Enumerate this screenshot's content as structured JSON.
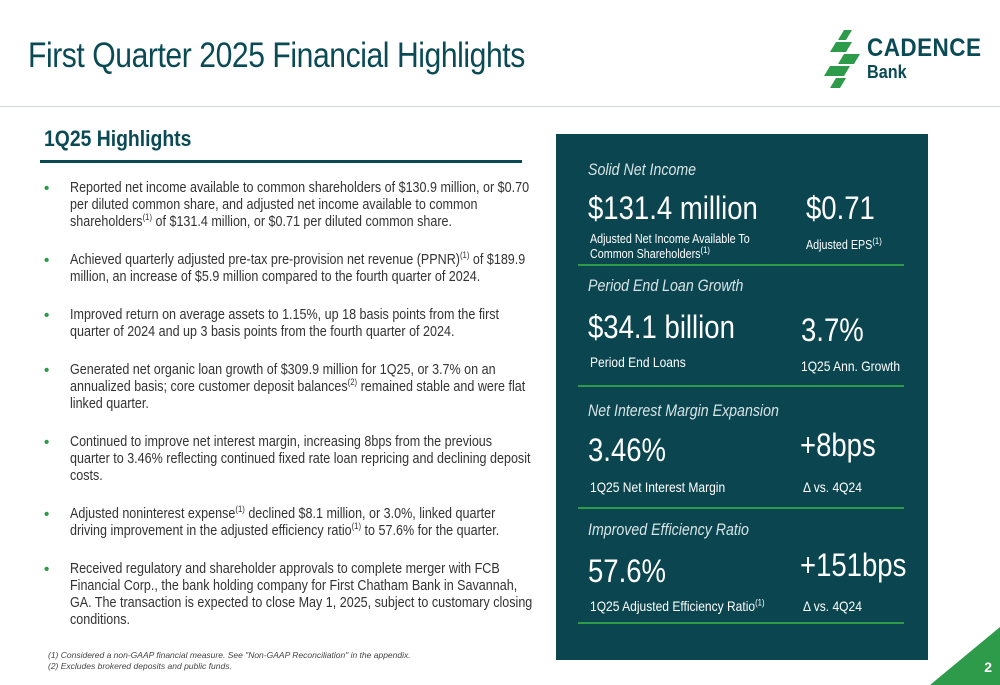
{
  "title": "First Quarter 2025 Financial Highlights",
  "logo": {
    "name": "CADENCE",
    "sub": "Bank"
  },
  "highlights": {
    "heading": "1Q25 Highlights",
    "bullets": [
      "Reported net income available to common shareholders of $130.9 million, or $0.70 per diluted common share, and adjusted net income available to common shareholders(1) of $131.4 million, or $0.71 per diluted common share.",
      "Achieved quarterly adjusted pre-tax pre-provision net revenue (PPNR)(1) of $189.9 million, an increase of $5.9 million compared to the fourth quarter of 2024.",
      "Improved return on average assets to 1.15%, up 18 basis points from the first quarter of 2024 and up 3 basis points from the fourth quarter of 2024.",
      "Generated net organic loan growth of $309.9 million for 1Q25, or 3.7% on an annualized basis; core customer deposit balances(2) remained stable and were flat linked quarter.",
      "Continued to improve net interest margin, increasing 8bps from the previous quarter to 3.46% reflecting continued fixed rate loan repricing and declining deposit costs.",
      "Adjusted noninterest expense(1) declined $8.1 million, or 3.0%, linked quarter driving improvement in the adjusted efficiency ratio(1) to 57.6% for the quarter.",
      "Received regulatory and shareholder approvals to complete merger with FCB Financial Corp., the bank holding company for First Chatham Bank in Savannah, GA. The transaction is expected to close May 1, 2025, subject to customary closing conditions."
    ]
  },
  "footnotes": [
    "(1) Considered a non-GAAP financial measure. See \"Non-GAAP Reconciliation\" in the appendix.",
    "(2) Excludes brokered deposits and public funds."
  ],
  "panel": {
    "net_income": {
      "title": "Solid Net Income",
      "value": "$131.4 million",
      "label": "Adjusted Net Income Available To Common Shareholders(1)",
      "eps_value": "$0.71",
      "eps_label": "Adjusted EPS(1)"
    },
    "loans": {
      "title": "Period End Loan Growth",
      "value": "$34.1 billion",
      "label": "Period End Loans",
      "growth_value": "3.7%",
      "growth_label": "1Q25 Ann. Growth"
    },
    "nim": {
      "title": "Net Interest Margin Expansion",
      "value": "3.46%",
      "label": "1Q25 Net Interest Margin",
      "change_value": "+8bps",
      "change_label": "Δ vs. 4Q24"
    },
    "efficiency": {
      "title": "Improved Efficiency Ratio",
      "value": "57.6%",
      "label": "1Q25 Adjusted Efficiency Ratio(1)",
      "change_value": "+151bps",
      "change_label": "Δ vs. 4Q24"
    }
  },
  "page_number": "2",
  "colors": {
    "teal": "#0b4650",
    "green": "#2e9b4a"
  }
}
